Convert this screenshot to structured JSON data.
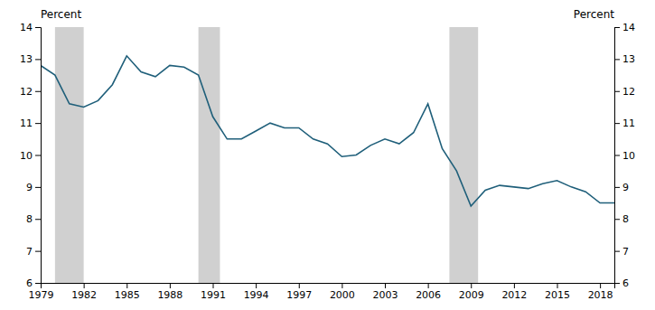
{
  "chart_data": {
    "type": "line",
    "ylabel": "Percent",
    "y2label": "Percent",
    "x": [
      1979,
      1980,
      1981,
      1982,
      1983,
      1984,
      1985,
      1986,
      1987,
      1988,
      1989,
      1990,
      1991,
      1992,
      1993,
      1994,
      1995,
      1996,
      1997,
      1998,
      1999,
      2000,
      2001,
      2002,
      2003,
      2004,
      2005,
      2006,
      2007,
      2008,
      2009,
      2010,
      2011,
      2012,
      2013,
      2014,
      2015,
      2016,
      2017,
      2018,
      2019
    ],
    "values": [
      12.8,
      12.5,
      11.6,
      11.5,
      11.7,
      12.2,
      13.1,
      12.6,
      12.45,
      12.8,
      12.75,
      12.5,
      11.2,
      10.5,
      10.5,
      10.75,
      11.0,
      10.85,
      10.85,
      10.5,
      10.35,
      9.95,
      10.0,
      10.3,
      10.5,
      10.35,
      10.7,
      11.6,
      10.2,
      9.5,
      8.4,
      8.9,
      9.05,
      9.0,
      8.95,
      9.1,
      9.2,
      9.0,
      8.85,
      8.5,
      8.5
    ],
    "color": "#1f5f7a",
    "recessions": {
      "color": "#d0d0d0",
      "ranges": [
        [
          1980.0,
          1982.0
        ],
        [
          1990.0,
          1991.5
        ],
        [
          2007.5,
          2009.5
        ]
      ]
    },
    "xlim": [
      1979,
      2019
    ],
    "xticks": [
      1979,
      1982,
      1985,
      1988,
      1991,
      1994,
      1997,
      2000,
      2003,
      2006,
      2009,
      2012,
      2015,
      2018
    ],
    "ylim": [
      6,
      14
    ],
    "yticks": [
      6,
      7,
      8,
      9,
      10,
      11,
      12,
      13,
      14
    ],
    "y2lim": [
      6,
      14
    ],
    "y2ticks": [
      6,
      7,
      8,
      9,
      10,
      11,
      12,
      13,
      14
    ]
  }
}
